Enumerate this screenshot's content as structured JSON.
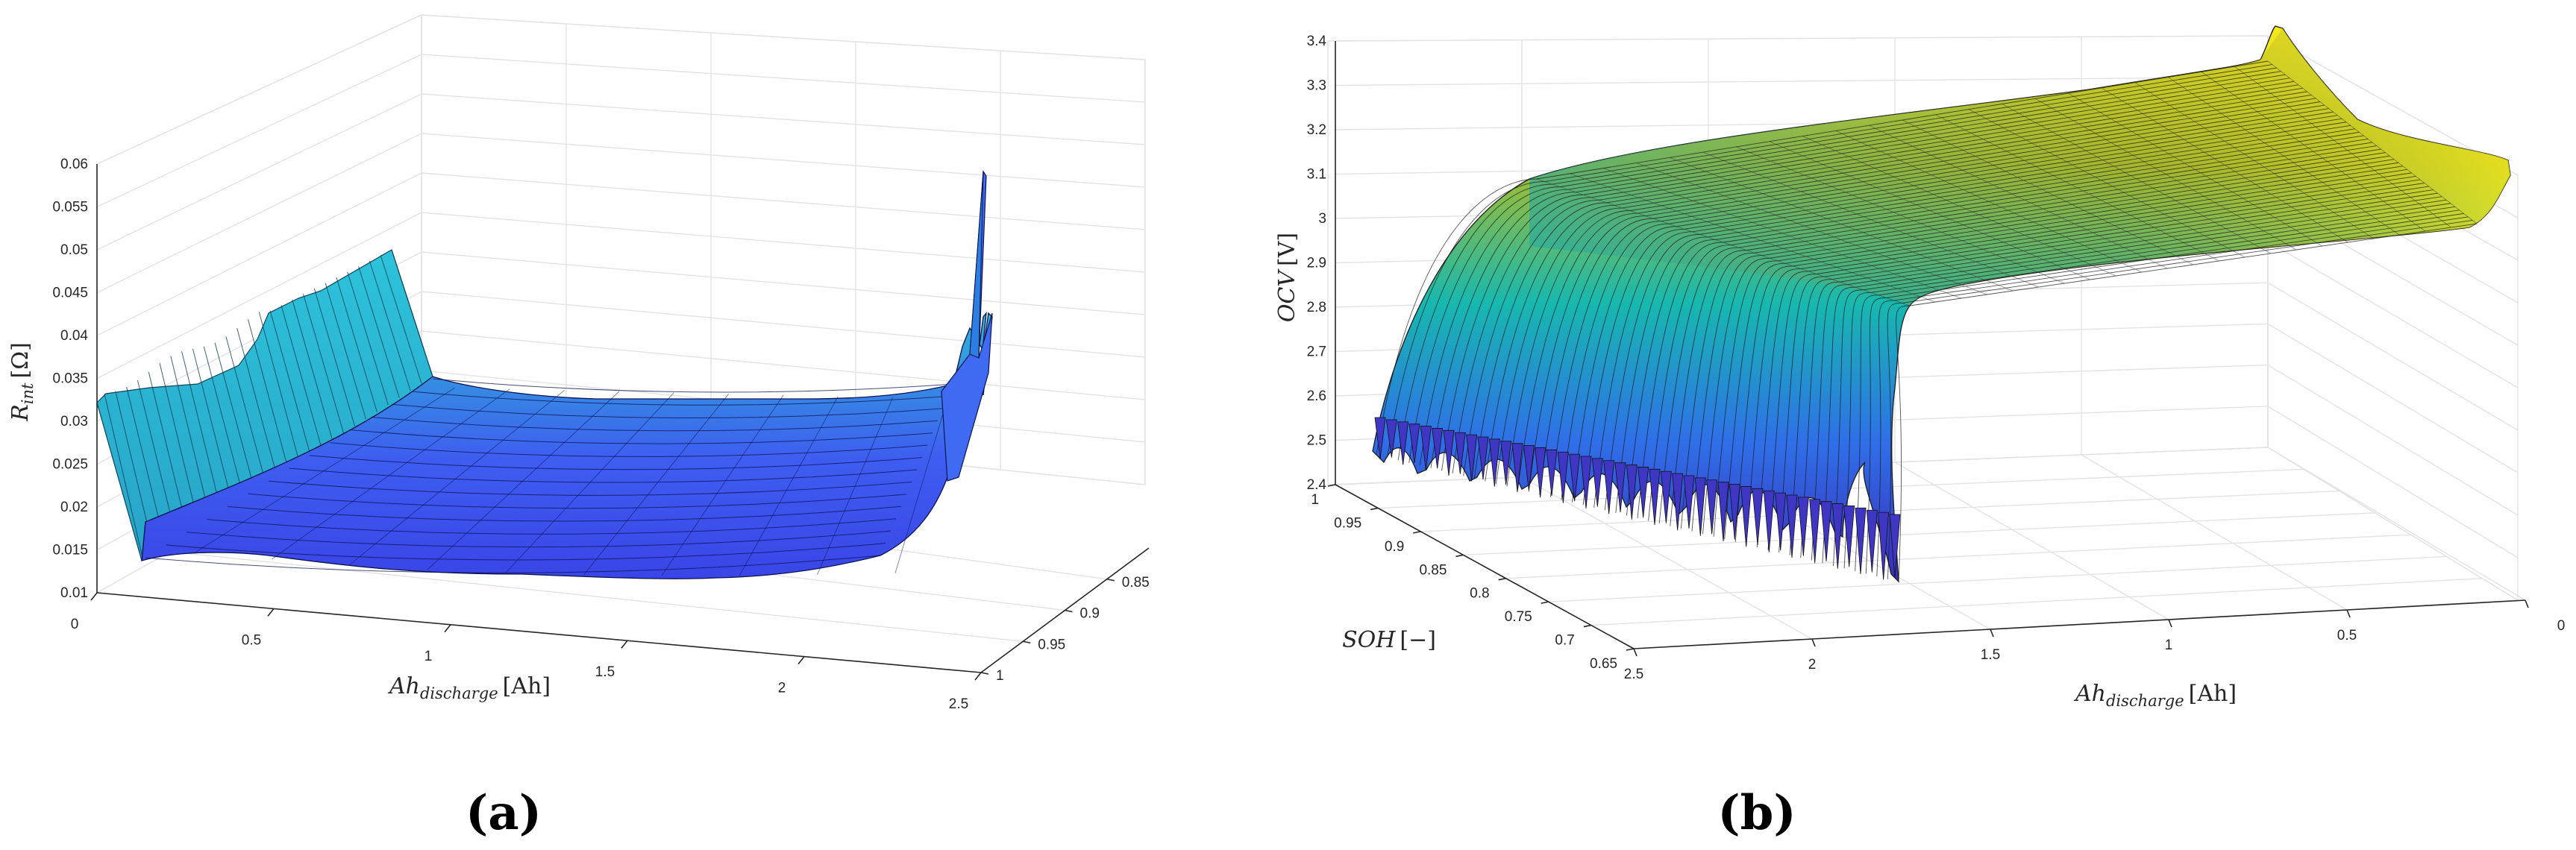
{
  "panels": [
    {
      "caption": "(a)",
      "chart_data": {
        "type": "surface",
        "zlabel": "R_int [Ω]",
        "zlabel_main": "R",
        "zlabel_sub": "int",
        "zlabel_unit": "[Ω]",
        "xlabel": "Ah_discharge [Ah]",
        "xlabel_main": "Ah",
        "xlabel_sub": "discharge",
        "xlabel_unit": "[Ah]",
        "ylabel": "",
        "x_ticks": [
          "0",
          "0.5",
          "1",
          "1.5",
          "2",
          "2.5"
        ],
        "y_ticks": [
          "1",
          "0.95",
          "0.9",
          "0.85"
        ],
        "z_ticks": [
          "0.01",
          "0.015",
          "0.02",
          "0.025",
          "0.03",
          "0.035",
          "0.04",
          "0.045",
          "0.05",
          "0.055",
          "0.06"
        ],
        "x_range": [
          0,
          2.5
        ],
        "y_range": [
          0.8,
          1
        ],
        "z_range": [
          0.01,
          0.06
        ],
        "grid": true,
        "colormap": "blue-cyan",
        "series": [
          {
            "soh": 1.0,
            "ah": [
              0,
              0.1,
              0.5,
              1,
              1.5,
              2,
              2.3,
              2.45,
              2.5
            ],
            "r": [
              0.032,
              0.03,
              0.018,
              0.016,
              0.016,
              0.017,
              0.019,
              0.028,
              0.058
            ]
          },
          {
            "soh": 0.95,
            "ah": [
              0,
              0.1,
              0.5,
              1,
              1.5,
              2,
              2.3,
              2.4
            ],
            "r": [
              0.033,
              0.031,
              0.019,
              0.017,
              0.017,
              0.018,
              0.02,
              0.034
            ]
          },
          {
            "soh": 0.9,
            "ah": [
              0,
              0.1,
              0.5,
              1,
              1.5,
              2,
              2.2
            ],
            "r": [
              0.04,
              0.036,
              0.021,
              0.018,
              0.018,
              0.019,
              0.031
            ]
          },
          {
            "soh": 0.85,
            "ah": [
              0,
              0.1,
              0.5,
              1,
              1.5,
              2,
              2.1
            ],
            "r": [
              0.05,
              0.044,
              0.024,
              0.02,
              0.02,
              0.021,
              0.029
            ]
          }
        ]
      }
    },
    {
      "caption": "(b)",
      "chart_data": {
        "type": "surface",
        "zlabel": "OCV [V]",
        "zlabel_main": "OCV",
        "zlabel_sub": "",
        "zlabel_unit": "[V]",
        "xlabel": "Ah_discharge [Ah]",
        "xlabel_main": "Ah",
        "xlabel_sub": "discharge",
        "xlabel_unit": "[Ah]",
        "ylabel": "SOH [−]",
        "ylabel_main": "SOH",
        "ylabel_unit": "[−]",
        "x_ticks": [
          "2.5",
          "2",
          "1.5",
          "1",
          "0.5",
          "0"
        ],
        "y_ticks": [
          "1",
          "0.95",
          "0.9",
          "0.85",
          "0.8",
          "0.75",
          "0.7",
          "0.65"
        ],
        "z_ticks": [
          "2.4",
          "2.5",
          "2.6",
          "2.7",
          "2.8",
          "2.9",
          "3",
          "3.1",
          "3.2",
          "3.3",
          "3.4"
        ],
        "x_range": [
          0,
          2.5
        ],
        "y_range": [
          0.65,
          1
        ],
        "z_range": [
          2.4,
          3.4
        ],
        "grid": true,
        "colormap": "parula",
        "series": [
          {
            "soh": 1.0,
            "ah": [
              0,
              0.1,
              0.3,
              0.6,
              1,
              1.5,
              2,
              2.3,
              2.45
            ],
            "ocv": [
              3.4,
              3.34,
              3.3,
              3.27,
              3.24,
              3.2,
              3.1,
              2.9,
              2.4
            ]
          },
          {
            "soh": 0.825,
            "ah": [
              0,
              0.1,
              0.3,
              0.6,
              1,
              1.5,
              1.9,
              2.05
            ],
            "ocv": [
              3.38,
              3.32,
              3.28,
              3.25,
              3.22,
              3.15,
              2.95,
              2.4
            ]
          },
          {
            "soh": 0.65,
            "ah": [
              0,
              0.1,
              0.3,
              0.6,
              1,
              1.4,
              1.62
            ],
            "ocv": [
              3.37,
              3.31,
              3.27,
              3.24,
              3.18,
              3.0,
              2.4
            ]
          }
        ]
      }
    }
  ]
}
